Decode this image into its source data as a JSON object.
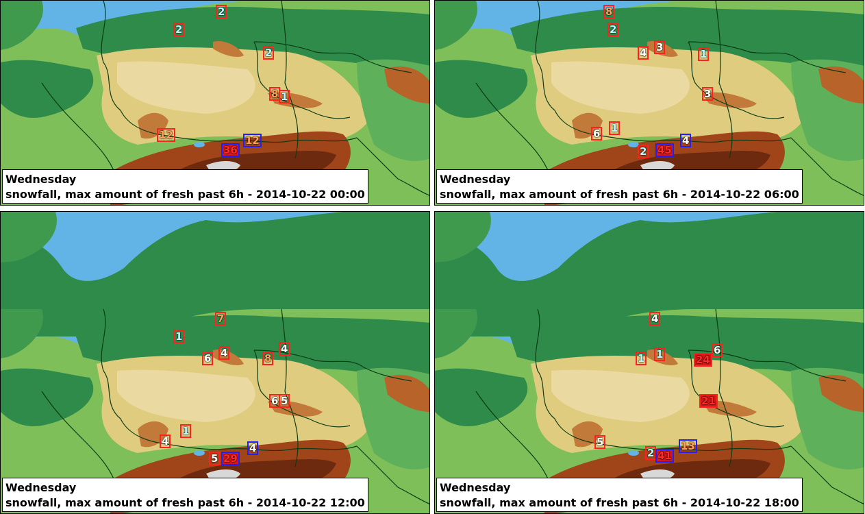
{
  "colors": {
    "sea": "#63b4e6",
    "lowland": "#2e8b4a",
    "plain": "#7fbf5a",
    "upland": "#e0cc7e",
    "mountain": "#a0451a",
    "peak": "#d8d8d8",
    "border": "#0b3b14",
    "marker_red": "#ff2020",
    "marker_blue": "#2020ff",
    "text_cyan": "#bff7ff",
    "text_orange": "#ff9f5a",
    "text_white": "#ffffff",
    "text_red": "#ff2a2a"
  },
  "panels": [
    {
      "day": "Wednesday",
      "title": "snowfall, max amount of fresh past 6h - 2014-10-22 00:00",
      "markers": [
        {
          "value": "2",
          "box": "red",
          "text": "cyan"
        },
        {
          "value": "2",
          "box": "red",
          "text": "cyan"
        },
        {
          "value": "2",
          "box": "red",
          "text": "cyan"
        },
        {
          "value": "8",
          "box": "red",
          "text": "orange"
        },
        {
          "value": "1",
          "box": "red",
          "text": "cyan"
        },
        {
          "value": "12",
          "box": "red",
          "text": "orange"
        },
        {
          "value": "36",
          "box": "blue",
          "text": "red",
          "filled": true
        },
        {
          "value": "12",
          "box": "blue",
          "text": "orange"
        }
      ]
    },
    {
      "day": "Wednesday",
      "title": "snowfall, max amount of fresh past 6h - 2014-10-22 06:00",
      "markers": [
        {
          "value": "8",
          "box": "red",
          "text": "orange"
        },
        {
          "value": "2",
          "box": "red",
          "text": "cyan"
        },
        {
          "value": "4",
          "box": "red",
          "text": "white"
        },
        {
          "value": "3",
          "box": "red",
          "text": "white"
        },
        {
          "value": "1",
          "box": "red",
          "text": "cyan"
        },
        {
          "value": "3",
          "box": "red",
          "text": "white"
        },
        {
          "value": "6",
          "box": "red",
          "text": "white"
        },
        {
          "value": "1",
          "box": "red",
          "text": "cyan"
        },
        {
          "value": "2",
          "box": "red",
          "text": "cyan"
        },
        {
          "value": "45",
          "box": "blue",
          "text": "red",
          "filled": true
        },
        {
          "value": "4",
          "box": "blue",
          "text": "white"
        }
      ]
    },
    {
      "day": "Wednesday",
      "title": "snowfall, max amount of fresh past 6h - 2014-10-22 12:00",
      "markers": [
        {
          "value": "7",
          "box": "red",
          "text": "orange"
        },
        {
          "value": "1",
          "box": "red",
          "text": "cyan"
        },
        {
          "value": "6",
          "box": "red",
          "text": "white"
        },
        {
          "value": "4",
          "box": "red",
          "text": "white"
        },
        {
          "value": "8",
          "box": "red",
          "text": "orange"
        },
        {
          "value": "4",
          "box": "red",
          "text": "white"
        },
        {
          "value": "6",
          "box": "red",
          "text": "white"
        },
        {
          "value": "5",
          "box": "red",
          "text": "white"
        },
        {
          "value": "4",
          "box": "red",
          "text": "white"
        },
        {
          "value": "1",
          "box": "red",
          "text": "cyan"
        },
        {
          "value": "5",
          "box": "red",
          "text": "white"
        },
        {
          "value": "29",
          "box": "blue",
          "text": "red",
          "filled": true
        },
        {
          "value": "4",
          "box": "blue",
          "text": "white"
        }
      ]
    },
    {
      "day": "Wednesday",
      "title": "snowfall, max amount of fresh past 6h - 2014-10-22 18:00",
      "markers": [
        {
          "value": "4",
          "box": "red",
          "text": "white"
        },
        {
          "value": "1",
          "box": "red",
          "text": "cyan"
        },
        {
          "value": "1",
          "box": "red",
          "text": "cyan"
        },
        {
          "value": "24",
          "box": "red",
          "text": "red",
          "filled": true
        },
        {
          "value": "6",
          "box": "red",
          "text": "white"
        },
        {
          "value": "21",
          "box": "red",
          "text": "red",
          "filled": true
        },
        {
          "value": "5",
          "box": "red",
          "text": "white"
        },
        {
          "value": "2",
          "box": "red",
          "text": "cyan"
        },
        {
          "value": "41",
          "box": "blue",
          "text": "red",
          "filled": true
        },
        {
          "value": "13",
          "box": "blue",
          "text": "orange"
        }
      ]
    }
  ]
}
